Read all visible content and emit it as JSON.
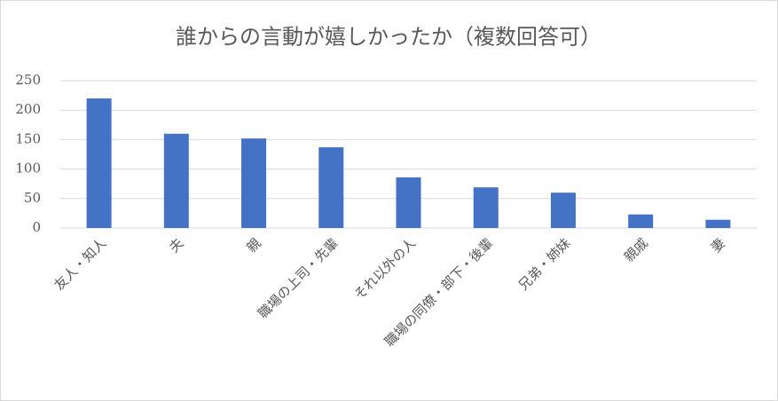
{
  "chart_data": {
    "type": "bar",
    "title": "誰からの言動が嬉しかったか（複数回答可）",
    "categories": [
      "友人・知人",
      "夫",
      "親",
      "職場の上司・先輩",
      "それ以外の人",
      "職場の同僚・部下・後輩",
      "兄弟・姉妹",
      "親戚",
      "妻"
    ],
    "values": [
      220,
      160,
      152,
      137,
      86,
      69,
      60,
      23,
      14
    ],
    "color": "#4472c4",
    "ylim": [
      0,
      250
    ],
    "yticks": [
      0,
      50,
      100,
      150,
      200,
      250
    ],
    "grid": true
  }
}
